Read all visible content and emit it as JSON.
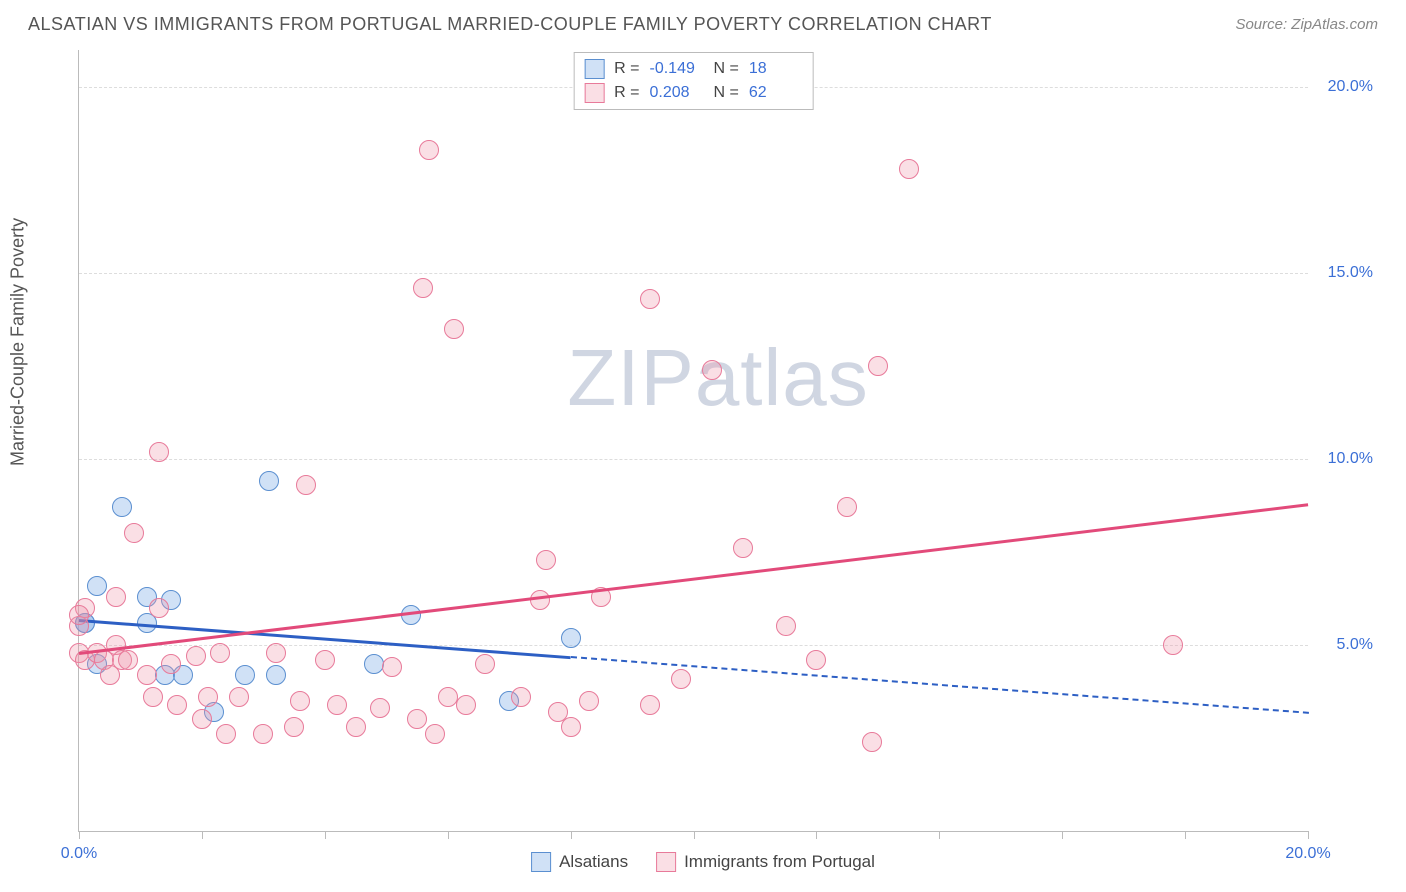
{
  "header": {
    "title": "ALSATIAN VS IMMIGRANTS FROM PORTUGAL MARRIED-COUPLE FAMILY POVERTY CORRELATION CHART",
    "source": "Source: ZipAtlas.com"
  },
  "ylabel": "Married-Couple Family Poverty",
  "watermark_zip": "ZIP",
  "watermark_atlas": "atlas",
  "chart": {
    "type": "scatter",
    "xlim": [
      0,
      20
    ],
    "ylim": [
      0,
      21
    ],
    "x_ticks": [
      0,
      2,
      4,
      6,
      8,
      10,
      12,
      14,
      16,
      18,
      20
    ],
    "x_tick_labels_shown": {
      "0": "0.0%",
      "20": "20.0%"
    },
    "y_ticks": [
      5,
      10,
      15,
      20
    ],
    "y_tick_labels": {
      "5": "5.0%",
      "10": "10.0%",
      "15": "15.0%",
      "20": "20.0%"
    },
    "grid_color": "#dddddd",
    "axis_color": "#bbbbbb",
    "background_color": "#ffffff",
    "marker_radius": 10,
    "series": [
      {
        "name_key": "legend.series_a",
        "fill": "rgba(120,170,230,0.35)",
        "stroke": "#5b8fd0",
        "reg_color": "#2d5fc4",
        "reg": {
          "y_at_x0": 5.7,
          "y_at_xmax": 3.2,
          "solid_until_x": 8.0
        },
        "stats": {
          "R": "-0.149",
          "N": "18"
        },
        "points": [
          [
            0.1,
            5.6
          ],
          [
            0.1,
            5.6
          ],
          [
            0.3,
            4.5
          ],
          [
            0.3,
            6.6
          ],
          [
            0.7,
            8.7
          ],
          [
            1.1,
            6.3
          ],
          [
            1.1,
            5.6
          ],
          [
            1.4,
            4.2
          ],
          [
            1.5,
            6.2
          ],
          [
            1.7,
            4.2
          ],
          [
            2.2,
            3.2
          ],
          [
            2.7,
            4.2
          ],
          [
            3.1,
            9.4
          ],
          [
            3.2,
            4.2
          ],
          [
            4.8,
            4.5
          ],
          [
            5.4,
            5.8
          ],
          [
            7.0,
            3.5
          ],
          [
            8.0,
            5.2
          ]
        ]
      },
      {
        "name_key": "legend.series_b",
        "fill": "rgba(240,150,170,0.3)",
        "stroke": "#e87a9a",
        "reg_color": "#e24a7a",
        "reg": {
          "y_at_x0": 4.8,
          "y_at_xmax": 8.8,
          "solid_until_x": 20.0
        },
        "stats": {
          "R": "0.208",
          "N": "62"
        },
        "points": [
          [
            0.0,
            5.5
          ],
          [
            0.0,
            4.8
          ],
          [
            0.1,
            4.6
          ],
          [
            0.1,
            6.0
          ],
          [
            0.3,
            4.8
          ],
          [
            0.4,
            4.6
          ],
          [
            0.5,
            4.2
          ],
          [
            0.6,
            5.0
          ],
          [
            0.6,
            6.3
          ],
          [
            0.7,
            4.6
          ],
          [
            0.8,
            4.6
          ],
          [
            0.9,
            8.0
          ],
          [
            1.1,
            4.2
          ],
          [
            1.2,
            3.6
          ],
          [
            1.3,
            10.2
          ],
          [
            1.3,
            6.0
          ],
          [
            1.5,
            4.5
          ],
          [
            1.6,
            3.4
          ],
          [
            1.9,
            4.7
          ],
          [
            2.0,
            3.0
          ],
          [
            2.1,
            3.6
          ],
          [
            2.3,
            4.8
          ],
          [
            2.4,
            2.6
          ],
          [
            2.6,
            3.6
          ],
          [
            3.0,
            2.6
          ],
          [
            3.2,
            4.8
          ],
          [
            3.5,
            2.8
          ],
          [
            3.6,
            3.5
          ],
          [
            3.7,
            9.3
          ],
          [
            4.0,
            4.6
          ],
          [
            4.2,
            3.4
          ],
          [
            4.5,
            2.8
          ],
          [
            4.9,
            3.3
          ],
          [
            5.1,
            4.4
          ],
          [
            5.5,
            3.0
          ],
          [
            5.6,
            14.6
          ],
          [
            5.7,
            18.3
          ],
          [
            5.8,
            2.6
          ],
          [
            6.0,
            3.6
          ],
          [
            6.1,
            13.5
          ],
          [
            6.3,
            3.4
          ],
          [
            6.6,
            4.5
          ],
          [
            7.2,
            3.6
          ],
          [
            7.5,
            6.2
          ],
          [
            7.6,
            7.3
          ],
          [
            7.8,
            3.2
          ],
          [
            8.0,
            2.8
          ],
          [
            8.3,
            3.5
          ],
          [
            8.5,
            6.3
          ],
          [
            9.3,
            3.4
          ],
          [
            9.3,
            14.3
          ],
          [
            9.8,
            4.1
          ],
          [
            10.3,
            12.4
          ],
          [
            10.8,
            7.6
          ],
          [
            11.5,
            5.5
          ],
          [
            12.0,
            4.6
          ],
          [
            12.5,
            8.7
          ],
          [
            12.9,
            2.4
          ],
          [
            13.0,
            12.5
          ],
          [
            13.5,
            17.8
          ],
          [
            17.8,
            5.0
          ],
          [
            0.0,
            5.8
          ]
        ]
      }
    ]
  },
  "legend": {
    "R_label": "R =",
    "N_label": "N =",
    "series_a": "Alsatians",
    "series_b": "Immigrants from Portugal"
  }
}
